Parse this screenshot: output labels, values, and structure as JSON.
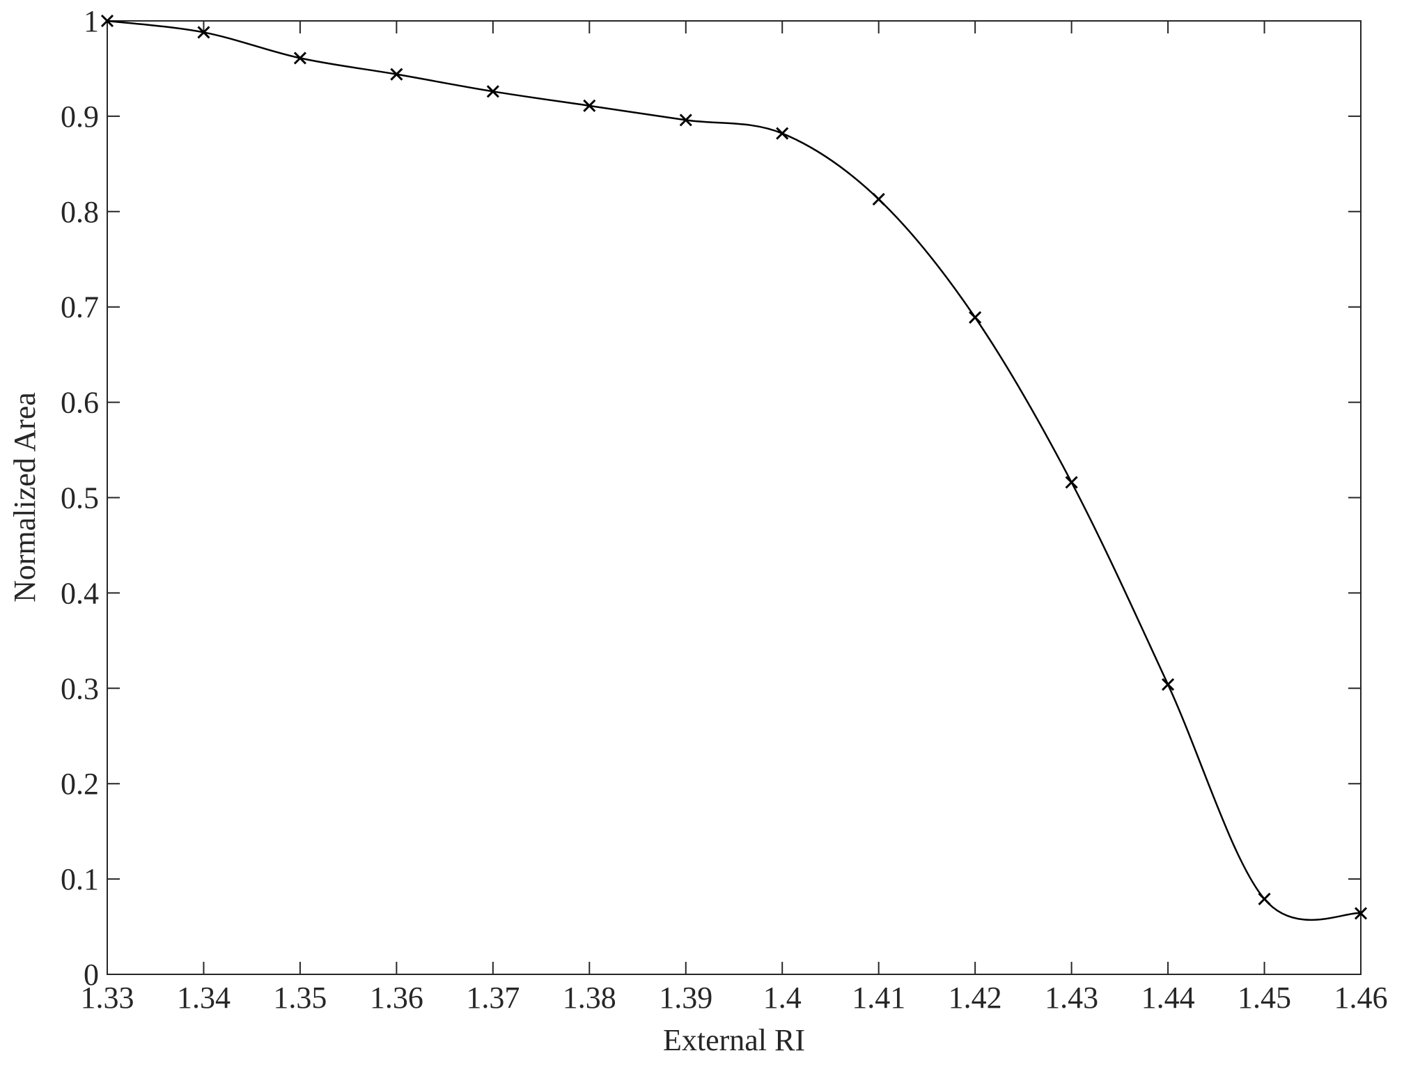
{
  "chart_data": {
    "type": "line",
    "x_label": "External RI",
    "y_label": "Normalized Area",
    "x": [
      1.33,
      1.34,
      1.35,
      1.36,
      1.37,
      1.38,
      1.39,
      1.4,
      1.41,
      1.42,
      1.43,
      1.44,
      1.45,
      1.46
    ],
    "series": [
      {
        "color": "#000000",
        "values": [
          1,
          0.988,
          0.961,
          0.944,
          0.926,
          0.911,
          0.896,
          0.882,
          0.813,
          0.689,
          0.516,
          0.304,
          0.079,
          0.064
        ]
      }
    ],
    "xlim": [
      1.33,
      1.46
    ],
    "ylim": [
      0,
      1
    ],
    "xticks": [
      1.33,
      1.34,
      1.35,
      1.36,
      1.37,
      1.38,
      1.39,
      1.4,
      1.41,
      1.42,
      1.43,
      1.44,
      1.45,
      1.46
    ],
    "yticks": [
      0,
      0.1,
      0.2,
      0.3,
      0.4,
      0.5,
      0.6,
      0.7,
      0.8,
      0.9,
      1
    ],
    "grid": false,
    "box": true,
    "marker": "x",
    "smooth": true
  }
}
